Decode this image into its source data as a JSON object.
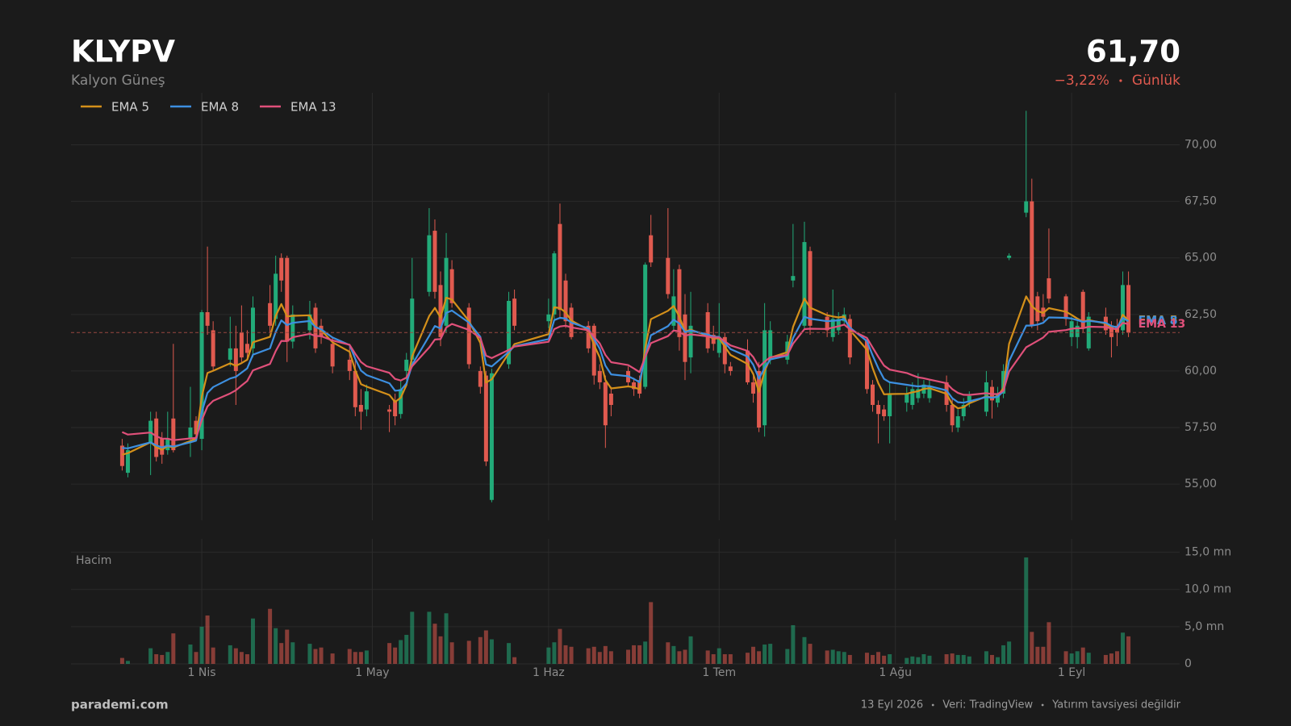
{
  "chart_data": {
    "type": "candlestick",
    "title": "KLYPV",
    "subtitle": "Kalyon Güneş",
    "price": "61,70",
    "change": "−3,22%",
    "period": "Günlük",
    "up_color": "#22ab79",
    "down_color": "#e05a4f",
    "x": [
      "2026-03-18",
      "2026-03-19",
      "2026-03-23",
      "2026-03-24",
      "2026-03-25",
      "2026-03-26",
      "2026-03-27",
      "2026-03-30",
      "2026-03-31",
      "2026-04-01",
      "2026-04-02",
      "2026-04-03",
      "2026-04-06",
      "2026-04-07",
      "2026-04-08",
      "2026-04-09",
      "2026-04-10",
      "2026-04-13",
      "2026-04-14",
      "2026-04-15",
      "2026-04-16",
      "2026-04-17",
      "2026-04-20",
      "2026-04-21",
      "2026-04-22",
      "2026-04-24",
      "2026-04-27",
      "2026-04-28",
      "2026-04-29",
      "2026-04-30",
      "2026-05-04",
      "2026-05-05",
      "2026-05-06",
      "2026-05-07",
      "2026-05-08",
      "2026-05-11",
      "2026-05-12",
      "2026-05-13",
      "2026-05-14",
      "2026-05-15",
      "2026-05-18",
      "2026-05-20",
      "2026-05-21",
      "2026-05-22",
      "2026-05-25",
      "2026-05-26",
      "2026-06-01",
      "2026-06-02",
      "2026-06-03",
      "2026-06-04",
      "2026-06-05",
      "2026-06-08",
      "2026-06-09",
      "2026-06-10",
      "2026-06-11",
      "2026-06-12",
      "2026-06-15",
      "2026-06-16",
      "2026-06-17",
      "2026-06-18",
      "2026-06-19",
      "2026-06-22",
      "2026-06-23",
      "2026-06-24",
      "2026-06-25",
      "2026-06-26",
      "2026-06-29",
      "2026-06-30",
      "2026-07-01",
      "2026-07-02",
      "2026-07-03",
      "2026-07-06",
      "2026-07-07",
      "2026-07-08",
      "2026-07-09",
      "2026-07-10",
      "2026-07-13",
      "2026-07-14",
      "2026-07-16",
      "2026-07-17",
      "2026-07-20",
      "2026-07-21",
      "2026-07-22",
      "2026-07-23",
      "2026-07-24",
      "2026-07-27",
      "2026-07-28",
      "2026-07-29",
      "2026-07-30",
      "2026-07-31",
      "2026-08-03",
      "2026-08-04",
      "2026-08-05",
      "2026-08-06",
      "2026-08-07",
      "2026-08-10",
      "2026-08-11",
      "2026-08-12",
      "2026-08-13",
      "2026-08-14",
      "2026-08-17",
      "2026-08-18",
      "2026-08-19",
      "2026-08-20",
      "2026-08-21",
      "2026-08-24",
      "2026-08-25",
      "2026-08-26",
      "2026-08-27",
      "2026-08-28",
      "2026-08-31",
      "2026-09-01",
      "2026-09-02",
      "2026-09-03",
      "2026-09-04",
      "2026-09-07",
      "2026-09-08",
      "2026-09-09",
      "2026-09-10",
      "2026-09-11"
    ],
    "open": [
      56.7,
      55.5,
      56.8,
      57.9,
      57.0,
      56.5,
      57.9,
      57.0,
      57.8,
      57.0,
      62.6,
      61.8,
      60.5,
      61.0,
      61.7,
      61.2,
      61.0,
      63.0,
      62.3,
      65.0,
      65.0,
      61.3,
      61.8,
      62.8,
      62.0,
      61.2,
      60.5,
      60.0,
      58.5,
      58.3,
      58.3,
      58.7,
      58.1,
      60.0,
      60.5,
      63.5,
      66.2,
      63.8,
      62.0,
      64.5,
      62.8,
      60.0,
      59.8,
      54.3,
      60.3,
      63.2,
      62.2,
      62.5,
      66.5,
      64.0,
      62.8,
      62.0,
      62.0,
      60.0,
      59.5,
      59.0,
      60.0,
      59.5,
      59.6,
      59.3,
      66.0,
      65.0,
      62.0,
      64.5,
      62.5,
      60.6,
      62.6,
      61.6,
      60.8,
      61.5,
      60.2,
      60.9,
      59.5,
      60.0,
      57.6,
      60.5,
      60.5,
      64.0,
      62.0,
      65.3,
      62.4,
      61.5,
      61.8,
      62.2,
      62.3,
      61.4,
      59.4,
      58.5,
      58.3,
      58.0,
      58.6,
      58.5,
      58.8,
      59.0,
      58.8,
      59.5,
      58.5,
      57.5,
      58.0,
      58.6,
      58.2,
      59.3,
      58.6,
      59.0,
      65.0,
      67.0,
      67.5,
      63.3,
      62.8,
      64.1,
      63.3,
      61.5,
      61.5,
      63.5,
      61.0,
      62.4,
      62.0,
      62.0,
      61.8,
      63.8
    ],
    "high": [
      57.0,
      56.8,
      58.2,
      58.2,
      57.3,
      58.2,
      61.2,
      59.3,
      58.0,
      62.7,
      65.5,
      62.2,
      62.4,
      62.0,
      62.9,
      61.8,
      63.3,
      63.8,
      65.1,
      65.2,
      65.1,
      62.9,
      63.1,
      63.0,
      62.3,
      61.5,
      61.2,
      60.5,
      59.2,
      59.4,
      58.5,
      59.0,
      59.6,
      60.8,
      65.0,
      67.2,
      66.7,
      64.4,
      66.1,
      64.9,
      63.0,
      60.2,
      60.0,
      60.1,
      63.5,
      63.6,
      63.2,
      65.3,
      67.4,
      64.3,
      63.0,
      62.2,
      62.1,
      60.3,
      59.8,
      59.3,
      60.2,
      59.7,
      59.8,
      64.8,
      66.9,
      67.2,
      64.5,
      64.7,
      63.4,
      63.5,
      63.0,
      62.0,
      63.0,
      61.7,
      60.4,
      61.4,
      59.9,
      60.4,
      63.0,
      62.2,
      61.6,
      66.5,
      66.6,
      65.5,
      62.6,
      63.6,
      62.6,
      62.8,
      62.5,
      61.5,
      59.6,
      58.7,
      58.5,
      59.5,
      59.3,
      59.5,
      59.9,
      59.6,
      59.6,
      59.8,
      58.8,
      58.3,
      58.8,
      59.1,
      60.0,
      59.6,
      59.3,
      60.3,
      65.2,
      71.5,
      68.5,
      63.5,
      63.4,
      66.3,
      63.4,
      62.4,
      62.2,
      63.6,
      62.6,
      62.8,
      62.2,
      62.3,
      64.4,
      64.4
    ],
    "low": [
      55.6,
      55.3,
      55.4,
      56.0,
      55.9,
      56.3,
      56.4,
      56.2,
      57.0,
      56.5,
      61.6,
      60.0,
      60.2,
      58.5,
      60.4,
      60.5,
      60.6,
      61.7,
      62.0,
      63.5,
      60.4,
      61.0,
      61.4,
      60.8,
      61.2,
      59.9,
      59.6,
      58.0,
      57.4,
      58.0,
      57.3,
      57.6,
      57.9,
      59.6,
      60.2,
      63.3,
      63.2,
      61.1,
      61.7,
      62.8,
      60.1,
      59.0,
      55.8,
      54.2,
      60.1,
      61.8,
      61.9,
      62.3,
      62.3,
      61.9,
      61.4,
      60.8,
      59.4,
      59.2,
      56.6,
      58.0,
      59.3,
      58.9,
      58.8,
      59.2,
      64.6,
      63.2,
      61.8,
      60.9,
      59.6,
      59.9,
      60.8,
      60.9,
      60.6,
      59.9,
      59.8,
      59.4,
      58.6,
      57.3,
      57.1,
      60.3,
      60.3,
      63.7,
      61.8,
      61.6,
      61.5,
      61.3,
      61.6,
      62.0,
      60.3,
      59.0,
      58.2,
      56.8,
      57.8,
      56.8,
      58.2,
      58.3,
      58.6,
      58.8,
      58.6,
      58.2,
      57.3,
      57.3,
      57.8,
      58.4,
      58.0,
      57.9,
      58.4,
      58.8,
      64.9,
      66.8,
      61.9,
      61.8,
      62.2,
      63.0,
      62.0,
      61.1,
      61.0,
      61.7,
      60.9,
      61.6,
      60.6,
      61.1,
      61.6,
      61.5
    ],
    "close": [
      55.8,
      56.5,
      57.8,
      56.2,
      56.3,
      57.0,
      56.5,
      57.5,
      57.2,
      62.6,
      62.0,
      60.2,
      61.0,
      60.0,
      60.6,
      60.8,
      62.8,
      62.0,
      64.3,
      64.0,
      61.3,
      62.5,
      62.5,
      61.0,
      61.5,
      60.2,
      60.0,
      58.4,
      58.2,
      59.1,
      58.2,
      58.0,
      59.2,
      60.5,
      63.2,
      66.0,
      63.5,
      61.5,
      65.0,
      63.0,
      60.3,
      59.3,
      56.0,
      59.9,
      63.1,
      62.0,
      62.5,
      65.2,
      62.7,
      62.2,
      61.5,
      61.0,
      59.8,
      59.5,
      57.6,
      58.5,
      59.5,
      59.2,
      59.0,
      64.7,
      64.8,
      63.4,
      63.3,
      61.5,
      60.4,
      62.0,
      61.0,
      61.2,
      61.5,
      60.3,
      60.0,
      59.5,
      59.0,
      57.5,
      61.8,
      61.8,
      61.3,
      64.2,
      65.7,
      62.0,
      61.8,
      62.3,
      62.3,
      62.5,
      60.6,
      59.2,
      58.5,
      58.1,
      58.0,
      59.0,
      59.0,
      59.2,
      59.2,
      59.4,
      59.3,
      58.5,
      57.6,
      58.0,
      58.5,
      58.9,
      59.5,
      58.7,
      59.0,
      60.0,
      65.1,
      67.5,
      62.0,
      62.2,
      62.4,
      63.2,
      62.3,
      62.2,
      62.0,
      61.9,
      62.4,
      61.8,
      61.5,
      61.7,
      63.8,
      61.7
    ],
    "volume": [
      0.8,
      0.4,
      2.1,
      1.3,
      1.2,
      1.6,
      4.1,
      2.6,
      1.6,
      5.0,
      6.5,
      2.2,
      2.5,
      2.1,
      1.6,
      1.3,
      6.1,
      7.4,
      4.8,
      2.8,
      4.6,
      2.9,
      2.7,
      2.0,
      2.2,
      1.4,
      2.0,
      1.6,
      1.6,
      1.8,
      2.8,
      2.2,
      3.2,
      3.9,
      7.0,
      7.0,
      5.4,
      3.7,
      6.8,
      2.9,
      3.1,
      3.6,
      4.5,
      3.3,
      2.8,
      0.9,
      2.2,
      2.9,
      4.7,
      2.5,
      2.3,
      2.1,
      2.3,
      1.6,
      2.4,
      1.7,
      1.9,
      2.5,
      2.5,
      3.0,
      8.3,
      2.9,
      2.4,
      1.7,
      1.9,
      3.7,
      1.8,
      1.3,
      2.1,
      1.3,
      1.3,
      1.5,
      2.3,
      1.7,
      2.6,
      2.7,
      2.0,
      5.2,
      3.6,
      2.7,
      1.8,
      1.9,
      1.7,
      1.6,
      1.2,
      1.5,
      1.2,
      1.6,
      1.1,
      1.3,
      0.8,
      1.0,
      0.9,
      1.3,
      1.1,
      1.3,
      1.4,
      1.2,
      1.2,
      1.0,
      1.7,
      1.2,
      0.9,
      2.5,
      3.0,
      14.3,
      4.3,
      2.3,
      2.3,
      5.6,
      1.7,
      1.4,
      1.7,
      2.2,
      1.5,
      1.2,
      1.4,
      1.7,
      4.2,
      3.7
    ],
    "series": [
      {
        "name": "EMA 5",
        "color": "#d4901a",
        "values": [
          56.3,
          56.37,
          56.85,
          56.63,
          56.52,
          56.68,
          56.62,
          56.91,
          57.01,
          58.87,
          59.91,
          60.01,
          60.34,
          60.23,
          60.35,
          60.5,
          61.27,
          61.51,
          62.44,
          62.96,
          62.41,
          62.44,
          62.46,
          61.97,
          61.81,
          61.27,
          60.85,
          60.03,
          59.42,
          59.31,
          58.94,
          58.63,
          58.82,
          59.38,
          60.65,
          62.43,
          62.79,
          62.36,
          63.24,
          63.16,
          62.21,
          61.24,
          59.49,
          59.63,
          60.79,
          61.19,
          61.63,
          62.82,
          62.78,
          62.59,
          62.23,
          61.82,
          61.15,
          60.6,
          59.6,
          59.23,
          59.32,
          59.28,
          59.19,
          61.03,
          62.29,
          62.66,
          62.87,
          62.41,
          61.74,
          61.83,
          61.55,
          61.43,
          61.45,
          61.07,
          60.71,
          60.31,
          59.87,
          59.08,
          59.99,
          60.59,
          60.83,
          61.95,
          63.2,
          62.8,
          62.47,
          62.41,
          62.37,
          62.41,
          61.81,
          60.94,
          60.13,
          59.45,
          58.97,
          58.98,
          58.99,
          59.06,
          59.11,
          59.21,
          59.24,
          58.99,
          58.53,
          58.35,
          58.4,
          58.57,
          58.88,
          58.82,
          58.88,
          59.25,
          61.2,
          63.3,
          62.87,
          62.65,
          62.57,
          62.78,
          62.62,
          62.48,
          62.32,
          62.18,
          62.25,
          62.1,
          61.9,
          61.83,
          62.49,
          62.23
        ]
      },
      {
        "name": "EMA 8",
        "color": "#3d8fe0",
        "values": [
          56.6,
          56.58,
          56.85,
          56.71,
          56.62,
          56.7,
          56.66,
          56.85,
          56.92,
          58.18,
          59.03,
          59.29,
          59.67,
          59.74,
          59.93,
          60.12,
          60.72,
          61.0,
          61.73,
          62.24,
          62.03,
          62.13,
          62.21,
          61.94,
          61.84,
          61.48,
          61.15,
          60.54,
          60.02,
          59.82,
          59.46,
          59.13,
          59.15,
          59.45,
          60.28,
          61.55,
          61.99,
          61.88,
          62.57,
          62.67,
          62.14,
          61.51,
          60.29,
          60.2,
          60.85,
          61.1,
          61.41,
          62.25,
          62.35,
          62.32,
          62.14,
          61.88,
          61.42,
          60.99,
          60.24,
          59.85,
          59.77,
          59.65,
          59.5,
          60.66,
          61.58,
          61.98,
          62.27,
          62.1,
          61.72,
          61.79,
          61.61,
          61.52,
          61.51,
          61.24,
          60.97,
          60.64,
          60.28,
          59.66,
          60.14,
          60.51,
          60.68,
          61.46,
          62.4,
          62.31,
          62.2,
          62.22,
          62.24,
          62.3,
          61.92,
          61.32,
          60.69,
          60.12,
          59.65,
          59.5,
          59.39,
          59.35,
          59.32,
          59.34,
          59.33,
          59.14,
          58.8,
          58.62,
          58.6,
          58.66,
          58.85,
          58.82,
          58.86,
          59.11,
          60.44,
          62.01,
          62.01,
          62.05,
          62.13,
          62.37,
          62.35,
          62.32,
          62.25,
          62.17,
          62.22,
          62.13,
          61.99,
          61.93,
          62.34,
          62.2
        ]
      },
      {
        "name": "EMA 13",
        "color": "#e0507a",
        "values": [
          57.3,
          57.19,
          57.28,
          57.12,
          57.01,
          57.01,
          56.94,
          57.02,
          57.04,
          57.83,
          58.43,
          58.68,
          59.01,
          59.15,
          59.36,
          59.56,
          60.03,
          60.31,
          60.88,
          61.33,
          61.32,
          61.49,
          61.64,
          61.55,
          61.54,
          61.35,
          61.16,
          60.76,
          60.4,
          60.21,
          59.92,
          59.65,
          59.58,
          59.71,
          60.21,
          61.04,
          61.39,
          61.41,
          61.92,
          62.08,
          61.82,
          61.46,
          60.68,
          60.57,
          60.93,
          61.08,
          61.29,
          61.85,
          61.97,
          62.0,
          61.93,
          61.8,
          61.51,
          61.22,
          60.71,
          60.39,
          60.26,
          60.11,
          59.95,
          60.63,
          61.23,
          61.54,
          61.79,
          61.75,
          61.56,
          61.62,
          61.53,
          61.48,
          61.48,
          61.31,
          61.13,
          60.89,
          60.62,
          60.18,
          60.41,
          60.61,
          60.71,
          61.21,
          61.85,
          61.87,
          61.86,
          61.92,
          61.98,
          62.05,
          61.84,
          61.46,
          61.04,
          60.62,
          60.24,
          60.06,
          59.91,
          59.81,
          59.72,
          59.68,
          59.62,
          59.46,
          59.2,
          59.03,
          58.95,
          58.94,
          59.02,
          58.98,
          58.98,
          59.13,
          59.98,
          61.05,
          61.19,
          61.33,
          61.48,
          61.73,
          61.81,
          61.87,
          61.89,
          61.89,
          61.96,
          61.94,
          61.88,
          61.85,
          62.13,
          62.07
        ]
      }
    ],
    "xlim": [
      "2026-03-09",
      "2026-09-20"
    ],
    "xticks": [
      {
        "value": "2026-04-01",
        "label": "1 Nis"
      },
      {
        "value": "2026-05-01",
        "label": "1 May"
      },
      {
        "value": "2026-06-01",
        "label": "1 Haz"
      },
      {
        "value": "2026-07-01",
        "label": "1 Tem"
      },
      {
        "value": "2026-08-01",
        "label": "1 Ağu"
      },
      {
        "value": "2026-09-01",
        "label": "1 Eyl"
      }
    ],
    "ylim": [
      53.4,
      72.3
    ],
    "yticks": [
      {
        "value": 55,
        "label": "55,00"
      },
      {
        "value": 57.5,
        "label": "57,50"
      },
      {
        "value": 60,
        "label": "60,00"
      },
      {
        "value": 62.5,
        "label": "62,50"
      },
      {
        "value": 65,
        "label": "65,00"
      },
      {
        "value": 67.5,
        "label": "67,50"
      },
      {
        "value": 70,
        "label": "70,00"
      }
    ],
    "volume_label": "Hacim",
    "volume_ylim": [
      0,
      16.8
    ],
    "volume_yticks": [
      0,
      {
        "value": 5,
        "label": "5,0 mn"
      },
      {
        "value": 10,
        "label": "10,0 mn"
      },
      {
        "value": 15,
        "label": "15,0 mn"
      }
    ],
    "grid": true,
    "legend": "top-left",
    "last_price_line": true
  },
  "footer": {
    "brand": "parademi.com",
    "date": "13 Eyl 2026",
    "source": "Veri: TradingView",
    "disclaimer": "Yatırım tavsiyesi değildir"
  }
}
